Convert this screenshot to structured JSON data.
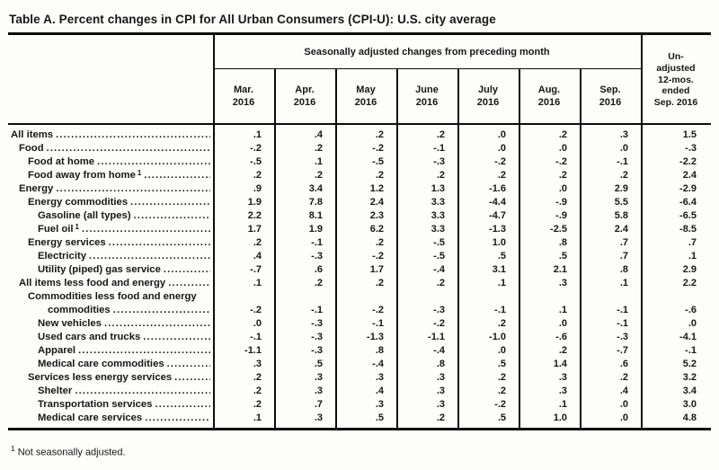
{
  "title": "Table A. Percent changes in CPI for All Urban Consumers (CPI-U): U.S. city average",
  "table": {
    "spanner": "Seasonally adjusted changes from preceding month",
    "unadjusted_header_lines": [
      "Un-",
      "adjusted",
      "12-mos.",
      "ended",
      "Sep. 2016"
    ],
    "columns": [
      {
        "month": "Mar.",
        "year": "2016"
      },
      {
        "month": "Apr.",
        "year": "2016"
      },
      {
        "month": "May",
        "year": "2016"
      },
      {
        "month": "June",
        "year": "2016"
      },
      {
        "month": "July",
        "year": "2016"
      },
      {
        "month": "Aug.",
        "year": "2016"
      },
      {
        "month": "Sep.",
        "year": "2016"
      }
    ],
    "rows": [
      {
        "label": "All items",
        "indent": 0,
        "values": [
          ".1",
          ".4",
          ".2",
          ".2",
          ".0",
          ".2",
          ".3"
        ],
        "unadjusted": "1.5"
      },
      {
        "label": "Food",
        "indent": 1,
        "values": [
          "-.2",
          ".2",
          "-.2",
          "-.1",
          ".0",
          ".0",
          ".0"
        ],
        "unadjusted": "-.3"
      },
      {
        "label": "Food at home",
        "indent": 2,
        "values": [
          "-.5",
          ".1",
          "-.5",
          "-.3",
          "-.2",
          "-.2",
          "-.1"
        ],
        "unadjusted": "-2.2"
      },
      {
        "label": "Food away from home",
        "footnote": "1",
        "indent": 2,
        "values": [
          ".2",
          ".2",
          ".2",
          ".2",
          ".2",
          ".2",
          ".2"
        ],
        "unadjusted": "2.4"
      },
      {
        "label": "Energy",
        "indent": 1,
        "values": [
          ".9",
          "3.4",
          "1.2",
          "1.3",
          "-1.6",
          ".0",
          "2.9"
        ],
        "unadjusted": "-2.9"
      },
      {
        "label": "Energy commodities",
        "indent": 2,
        "values": [
          "1.9",
          "7.8",
          "2.4",
          "3.3",
          "-4.4",
          "-.9",
          "5.5"
        ],
        "unadjusted": "-6.4"
      },
      {
        "label": "Gasoline (all types)",
        "indent": 3,
        "values": [
          "2.2",
          "8.1",
          "2.3",
          "3.3",
          "-4.7",
          "-.9",
          "5.8"
        ],
        "unadjusted": "-6.5"
      },
      {
        "label": "Fuel oil",
        "footnote": "1",
        "indent": 3,
        "values": [
          "1.7",
          "1.9",
          "6.2",
          "3.3",
          "-1.3",
          "-2.5",
          "2.4"
        ],
        "unadjusted": "-8.5"
      },
      {
        "label": "Energy services",
        "indent": 2,
        "values": [
          ".2",
          "-.1",
          ".2",
          "-.5",
          "1.0",
          ".8",
          ".7"
        ],
        "unadjusted": ".7"
      },
      {
        "label": "Electricity",
        "indent": 3,
        "values": [
          ".4",
          "-.3",
          "-.2",
          "-.5",
          ".5",
          ".5",
          ".7"
        ],
        "unadjusted": ".1"
      },
      {
        "label": "Utility (piped) gas service",
        "indent": 3,
        "values": [
          "-.7",
          ".6",
          "1.7",
          "-.4",
          "3.1",
          "2.1",
          ".8"
        ],
        "unadjusted": "2.9"
      },
      {
        "label": "All items less food and energy",
        "indent": 1,
        "values": [
          ".1",
          ".2",
          ".2",
          ".2",
          ".1",
          ".3",
          ".1"
        ],
        "unadjusted": "2.2"
      },
      {
        "label": "Commodities less food and energy",
        "label2": "commodities",
        "indent": 2,
        "values": [
          "-.2",
          "-.1",
          "-.2",
          "-.3",
          "-.1",
          ".1",
          "-.1"
        ],
        "unadjusted": "-.6"
      },
      {
        "label": "New vehicles",
        "indent": 3,
        "values": [
          ".0",
          "-.3",
          "-.1",
          "-.2",
          ".2",
          ".0",
          "-.1"
        ],
        "unadjusted": ".0"
      },
      {
        "label": "Used cars and trucks",
        "indent": 3,
        "values": [
          "-.1",
          "-.3",
          "-1.3",
          "-1.1",
          "-1.0",
          "-.6",
          "-.3"
        ],
        "unadjusted": "-4.1"
      },
      {
        "label": "Apparel",
        "indent": 3,
        "values": [
          "-1.1",
          "-.3",
          ".8",
          "-.4",
          ".0",
          ".2",
          "-.7"
        ],
        "unadjusted": "-.1"
      },
      {
        "label": "Medical care commodities",
        "indent": 3,
        "values": [
          ".3",
          ".5",
          "-.4",
          ".8",
          ".5",
          "1.4",
          ".6"
        ],
        "unadjusted": "5.2"
      },
      {
        "label": "Services less energy services",
        "indent": 2,
        "values": [
          ".2",
          ".3",
          ".3",
          ".3",
          ".2",
          ".3",
          ".2"
        ],
        "unadjusted": "3.2"
      },
      {
        "label": "Shelter",
        "indent": 3,
        "values": [
          ".2",
          ".3",
          ".4",
          ".3",
          ".2",
          ".3",
          ".4"
        ],
        "unadjusted": "3.4"
      },
      {
        "label": "Transportation services",
        "indent": 3,
        "values": [
          ".2",
          ".7",
          ".3",
          ".3",
          "-.2",
          ".1",
          ".0"
        ],
        "unadjusted": "3.0"
      },
      {
        "label": "Medical care services",
        "indent": 3,
        "values": [
          ".1",
          ".3",
          ".5",
          ".2",
          ".5",
          "1.0",
          ".0"
        ],
        "unadjusted": "4.8"
      }
    ]
  },
  "footnote": {
    "marker": "1",
    "text": "Not seasonally adjusted."
  }
}
